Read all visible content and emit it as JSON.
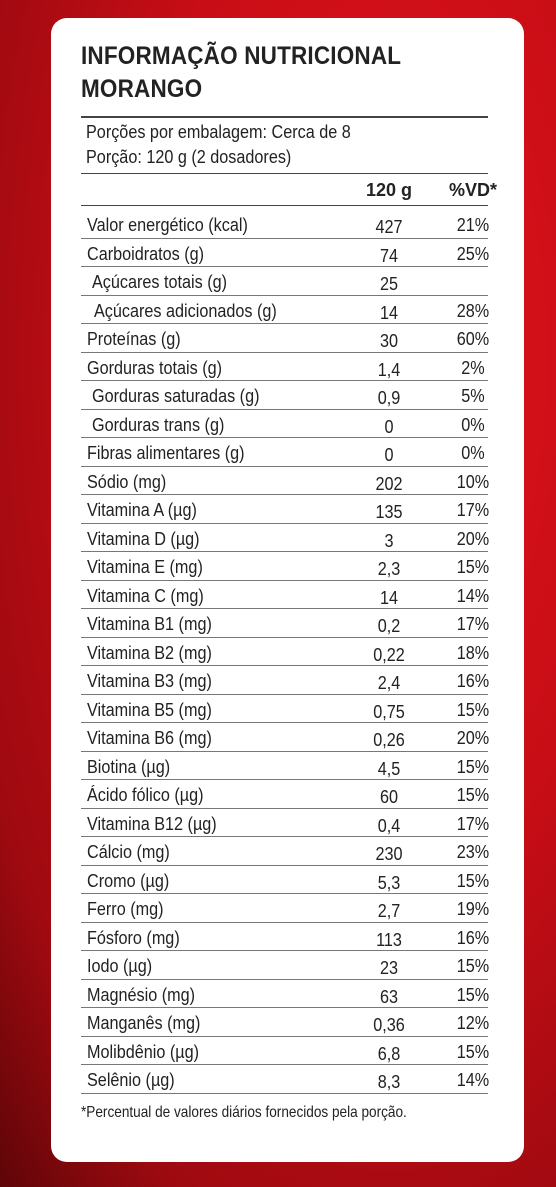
{
  "title": {
    "line1": "INFORMAÇÃO NUTRICIONAL",
    "line2": "MORANGO"
  },
  "portions": {
    "per_package": "Porções por embalagem: Cerca de 8",
    "serving": "Porção: 120 g (2 dosadores)"
  },
  "header": {
    "col_amount": "120 g",
    "col_dv": "%VD*"
  },
  "rows": [
    {
      "label": "Valor energético (kcal)",
      "value": "427",
      "dv": "21%"
    },
    {
      "label": "Carboidratos (g)",
      "value": "74",
      "dv": "25%"
    },
    {
      "label": "Açúcares totais (g)",
      "value": "25",
      "dv": ""
    },
    {
      "label": "Açúcares adicionados (g)",
      "value": "14",
      "dv": "28%"
    },
    {
      "label": "Proteínas (g)",
      "value": "30",
      "dv": "60%"
    },
    {
      "label": "Gorduras totais (g)",
      "value": "1,4",
      "dv": "2%"
    },
    {
      "label": "Gorduras saturadas (g)",
      "value": "0,9",
      "dv": "5%"
    },
    {
      "label": "Gorduras trans (g)",
      "value": "0",
      "dv": "0%"
    },
    {
      "label": "Fibras alimentares (g)",
      "value": "0",
      "dv": "0%"
    },
    {
      "label": "Sódio (mg)",
      "value": "202",
      "dv": "10%"
    },
    {
      "label": "Vitamina A (µg)",
      "value": "135",
      "dv": "17%"
    },
    {
      "label": "Vitamina D (µg)",
      "value": "3",
      "dv": "20%"
    },
    {
      "label": "Vitamina E (mg)",
      "value": "2,3",
      "dv": "15%"
    },
    {
      "label": "Vitamina C (mg)",
      "value": "14",
      "dv": "14%"
    },
    {
      "label": "Vitamina B1 (mg)",
      "value": "0,2",
      "dv": "17%"
    },
    {
      "label": "Vitamina B2 (mg)",
      "value": "0,22",
      "dv": "18%"
    },
    {
      "label": "Vitamina B3 (mg)",
      "value": "2,4",
      "dv": "16%"
    },
    {
      "label": "Vitamina B5 (mg)",
      "value": "0,75",
      "dv": "15%"
    },
    {
      "label": "Vitamina B6 (mg)",
      "value": "0,26",
      "dv": "20%"
    },
    {
      "label": "Biotina (µg)",
      "value": "4,5",
      "dv": "15%"
    },
    {
      "label": "Ácido fólico (µg)",
      "value": "60",
      "dv": "15%"
    },
    {
      "label": "Vitamina B12 (µg)",
      "value": "0,4",
      "dv": "17%"
    },
    {
      "label": "Cálcio (mg)",
      "value": "230",
      "dv": "23%"
    },
    {
      "label": "Cromo (µg)",
      "value": "5,3",
      "dv": "15%"
    },
    {
      "label": "Ferro (mg)",
      "value": "2,7",
      "dv": "19%"
    },
    {
      "label": "Fósforo (mg)",
      "value": "113",
      "dv": "16%"
    },
    {
      "label": "Iodo (µg)",
      "value": "23",
      "dv": "15%"
    },
    {
      "label": "Magnésio (mg)",
      "value": "63",
      "dv": "15%"
    },
    {
      "label": "Manganês (mg)",
      "value": "0,36",
      "dv": "12%"
    },
    {
      "label": "Molibdênio (µg)",
      "value": "6,8",
      "dv": "15%"
    },
    {
      "label": "Selênio (µg)",
      "value": "8,3",
      "dv": "14%"
    }
  ],
  "footnote": "*Percentual de valores diários fornecidos pela porção."
}
